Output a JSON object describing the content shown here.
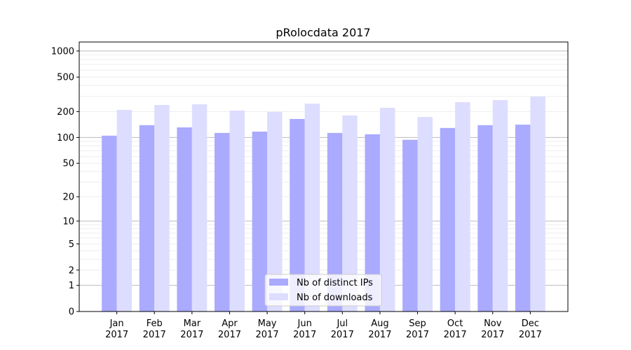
{
  "chart_data": {
    "type": "bar",
    "title": "pRolocdata 2017",
    "xlabel": "",
    "ylabel": "",
    "yscale": "symlog (log10(1+y))",
    "ylim": [
      0,
      1270
    ],
    "yticks": [
      0,
      1,
      2,
      5,
      10,
      20,
      50,
      100,
      200,
      500,
      1000
    ],
    "ytick_labels": [
      "0",
      "1",
      "2",
      "5",
      "10",
      "20",
      "50",
      "100",
      "200",
      "500",
      "1000"
    ],
    "grid": true,
    "categories": [
      {
        "month": "Jan",
        "year": "2017"
      },
      {
        "month": "Feb",
        "year": "2017"
      },
      {
        "month": "Mar",
        "year": "2017"
      },
      {
        "month": "Apr",
        "year": "2017"
      },
      {
        "month": "May",
        "year": "2017"
      },
      {
        "month": "Jun",
        "year": "2017"
      },
      {
        "month": "Jul",
        "year": "2017"
      },
      {
        "month": "Aug",
        "year": "2017"
      },
      {
        "month": "Sep",
        "year": "2017"
      },
      {
        "month": "Oct",
        "year": "2017"
      },
      {
        "month": "Nov",
        "year": "2017"
      },
      {
        "month": "Dec",
        "year": "2017"
      }
    ],
    "series": [
      {
        "name": "Nb of distinct IPs",
        "color": "#aaaaff",
        "values": [
          105,
          139,
          131,
          113,
          117,
          164,
          113,
          109,
          94,
          129,
          139,
          141
        ]
      },
      {
        "name": "Nb of downloads",
        "color": "#ddddff",
        "values": [
          209,
          238,
          243,
          205,
          198,
          247,
          180,
          221,
          173,
          257,
          271,
          298
        ]
      }
    ],
    "legend_placement": "lower-center"
  }
}
